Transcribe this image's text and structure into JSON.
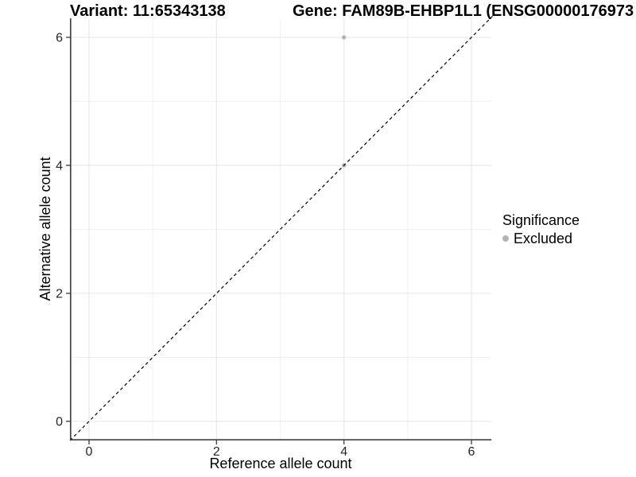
{
  "chart_data": {
    "type": "scatter",
    "title": "Variant: 11:65343138",
    "title_right": "Gene: FAM89B-EHBP1L1 (ENSG00000176973",
    "xlabel": "Reference allele count",
    "ylabel": "Alternative allele count",
    "xlim": [
      -0.3,
      6.3
    ],
    "ylim": [
      -0.3,
      6.3
    ],
    "x_ticks": [
      0,
      2,
      4,
      6
    ],
    "y_ticks": [
      0,
      2,
      4,
      6
    ],
    "x_minor_gridlines": [
      1,
      3,
      5
    ],
    "y_minor_gridlines": [
      1,
      3,
      5
    ],
    "grid": true,
    "points": [
      {
        "x": 4,
        "y": 6,
        "series": "Excluded"
      },
      {
        "x": 4,
        "y": 4,
        "series": "Excluded"
      }
    ],
    "reference_line": {
      "type": "identity",
      "slope": 1,
      "intercept": 0,
      "style": "dashed",
      "color": "#000000"
    },
    "legend": {
      "title": "Significance",
      "position": "right",
      "items": [
        {
          "label": "Excluded",
          "color": "#b5b5b5"
        }
      ]
    },
    "colors": {
      "point": "#b5b5b5",
      "grid_major": "#e5e5e5",
      "grid_minor": "#f0f0f0",
      "axis_line": "#404040",
      "tick_mark": "#474747",
      "tick_label": "#262626",
      "background": "#ffffff"
    }
  }
}
